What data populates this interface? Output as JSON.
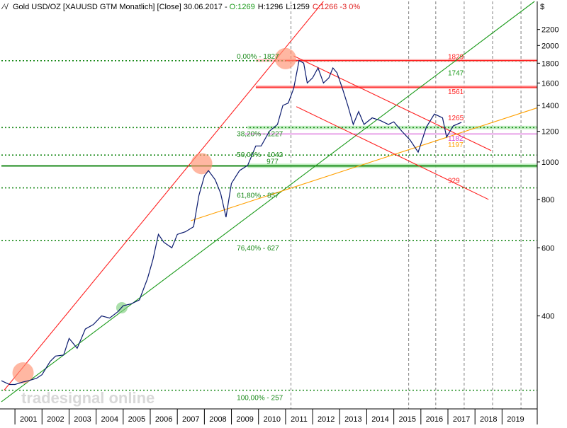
{
  "header": {
    "icon": "line-chart-icon",
    "instrument": "Gold USD/OZ [XAUUSD GTM  Monatlich] [Close] 30.06.2017 - ",
    "open": "O:1269",
    "high": "H:1296",
    "low": "L:1259",
    "close": "C:1266 -3 0%"
  },
  "watermark": "tradesignal online",
  "colors": {
    "price": "#0a1a6e",
    "red_line": "#ff2020",
    "green_line": "#1a9a1a",
    "orange_line": "#ffa000",
    "magenta_line": "#d040d0",
    "fib_level": "#1a8a1a",
    "grid": "#808080",
    "hl_red": "#ffb0b0",
    "hl_green": "#b0e8b0",
    "marker": "#ff9070",
    "marker_green": "#80d080"
  },
  "chart_data": {
    "type": "line",
    "title": "Gold USD/OZ [XAUUSD GTM  Monatlich] [Close]",
    "y_unit": "$",
    "y_scale": "log",
    "ylim": [
      230,
      2600
    ],
    "xlim": [
      2000.5,
      2020.3
    ],
    "x_ticks": [
      2001,
      2002,
      2003,
      2004,
      2005,
      2006,
      2007,
      2008,
      2009,
      2010,
      2011,
      2012,
      2013,
      2014,
      2015,
      2016,
      2017,
      2018,
      2019
    ],
    "y_ticks": [
      400,
      600,
      800,
      1000,
      1200,
      1400,
      1600,
      1800,
      2000,
      2200
    ],
    "series": [
      {
        "name": "",
        "x": [
          2000.5,
          2000.8,
          2001.0,
          2001.3,
          2001.5,
          2001.8,
          2002.0,
          2002.3,
          2002.5,
          2002.8,
          2003.0,
          2003.3,
          2003.6,
          2003.9,
          2004.2,
          2004.5,
          2004.8,
          2005.0,
          2005.3,
          2005.6,
          2005.9,
          2006.1,
          2006.3,
          2006.5,
          2006.8,
          2007.0,
          2007.3,
          2007.6,
          2007.8,
          2008.0,
          2008.15,
          2008.4,
          2008.6,
          2008.8,
          2009.0,
          2009.3,
          2009.6,
          2009.9,
          2010.1,
          2010.4,
          2010.7,
          2010.9,
          2011.1,
          2011.3,
          2011.5,
          2011.67,
          2011.8,
          2012.0,
          2012.2,
          2012.4,
          2012.6,
          2012.75,
          2012.9,
          2013.1,
          2013.3,
          2013.5,
          2013.7,
          2013.9,
          2014.2,
          2014.5,
          2014.8,
          2015.0,
          2015.3,
          2015.6,
          2015.9,
          2016.2,
          2016.5,
          2016.8,
          2016.95,
          2017.2,
          2017.5
        ],
        "y": [
          272,
          266,
          266,
          270,
          272,
          276,
          282,
          305,
          315,
          317,
          350,
          330,
          370,
          380,
          400,
          395,
          410,
          425,
          430,
          440,
          500,
          560,
          650,
          620,
          600,
          650,
          660,
          680,
          820,
          920,
          950,
          900,
          830,
          720,
          880,
          950,
          980,
          1100,
          1100,
          1200,
          1250,
          1400,
          1420,
          1550,
          1830,
          1800,
          1600,
          1650,
          1750,
          1600,
          1650,
          1750,
          1700,
          1550,
          1400,
          1250,
          1350,
          1250,
          1300,
          1280,
          1250,
          1270,
          1200,
          1140,
          1060,
          1230,
          1330,
          1300,
          1160,
          1240,
          1266
        ]
      }
    ],
    "fibonacci_levels": [
      {
        "label": "0,00% - 1827",
        "value": 1827
      },
      {
        "label": "38,20% - 1227",
        "value": 1227
      },
      {
        "label": "50,00% - 1042",
        "value": 1042
      },
      {
        "label": "977",
        "value": 977
      },
      {
        "label": "61,80% - 857",
        "value": 857
      },
      {
        "label": "76,40% - 627",
        "value": 627
      },
      {
        "label": "100,00% - 257",
        "value": 257
      }
    ],
    "annotations": [
      {
        "label": "1829",
        "value": 1829,
        "color": "red"
      },
      {
        "label": "1747",
        "value": 1747,
        "color": "green"
      },
      {
        "label": "1561",
        "value": 1561,
        "color": "red"
      },
      {
        "label": "1265",
        "value": 1265,
        "color": "red"
      },
      {
        "label": "1182",
        "value": 1182,
        "color": "magenta"
      },
      {
        "label": "1197",
        "value": 1197,
        "color": "orange"
      },
      {
        "label": "929",
        "value": 929,
        "color": "red"
      }
    ],
    "trendlines": [
      {
        "color": "red",
        "p1": [
          2000.6,
          257
        ],
        "p2": [
          2012.4,
          2600
        ]
      },
      {
        "color": "green",
        "p1": [
          2000.5,
          240
        ],
        "p2": [
          2020.2,
          2600
        ]
      },
      {
        "color": "orange",
        "p1": [
          2007.5,
          705
        ],
        "p2": [
          2020.3,
          1380
        ]
      },
      {
        "color": "red",
        "p1": [
          2011.3,
          1880
        ],
        "p2": [
          2018.6,
          1070
        ]
      },
      {
        "color": "red",
        "p1": [
          2011.4,
          1390
        ],
        "p2": [
          2018.5,
          800
        ]
      }
    ],
    "highlight_bands": [
      {
        "color": "red",
        "from": 1815,
        "to": 1845
      },
      {
        "color": "red",
        "from": 1545,
        "to": 1578
      },
      {
        "color": "green",
        "from": 1215,
        "to": 1240
      },
      {
        "color": "green",
        "from": 965,
        "to": 990
      }
    ],
    "markers": [
      {
        "x": 2001.3,
        "y": 285,
        "color": "orange"
      },
      {
        "x": 2007.9,
        "y": 990,
        "color": "orange"
      },
      {
        "x": 2011.0,
        "y": 1850,
        "color": "orange"
      },
      {
        "x": 2004.95,
        "y": 420,
        "color": "green"
      }
    ],
    "vertical_lines": [
      2011.2,
      2015.55,
      2016.55,
      2017.6,
      2018.65,
      2019.7
    ],
    "grid": true
  }
}
